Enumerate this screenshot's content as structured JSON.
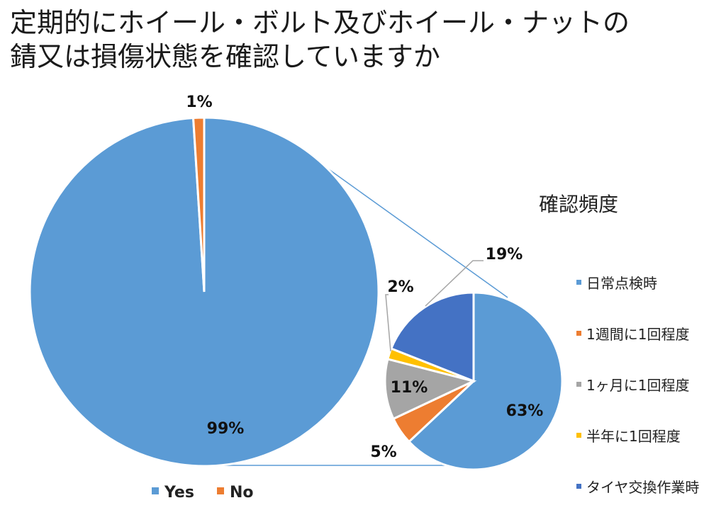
{
  "chart_data": [
    {
      "type": "pie",
      "title": "定期的にホイール・ボルト及びホイール・ナットの錆又は損傷状態を確認していますか",
      "title_lines": [
        "定期的にホイール・ボルト及びホイール・ナットの",
        "錆又は損傷状態を確認していますか"
      ],
      "categories": [
        "Yes",
        "No"
      ],
      "values": [
        99,
        1
      ],
      "data_labels": [
        "99%",
        "1%"
      ],
      "colors": [
        "#5B9BD5",
        "#ED7D31"
      ],
      "legend_position": "bottom"
    },
    {
      "type": "pie",
      "title": "確認頻度",
      "categories": [
        "日常点検時",
        "1週間に1回程度",
        "1ヶ月に1回程度",
        "半年に1回程度",
        "タイヤ交換作業時"
      ],
      "values": [
        63,
        5,
        11,
        2,
        19
      ],
      "data_labels": [
        "63%",
        "5%",
        "11%",
        "2%",
        "19%"
      ],
      "colors": [
        "#5B9BD5",
        "#ED7D31",
        "#A5A5A5",
        "#FFC000",
        "#4472C4"
      ],
      "legend_position": "right",
      "breakdown_of": "Yes"
    }
  ]
}
